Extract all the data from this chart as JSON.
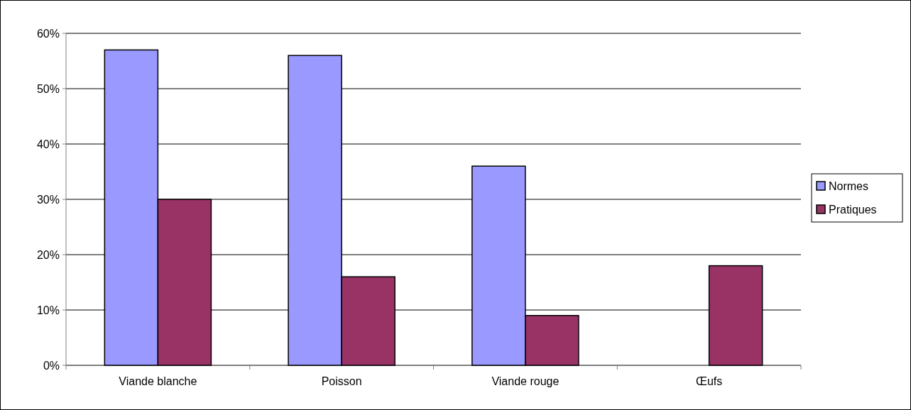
{
  "chart_data": {
    "type": "bar",
    "categories": [
      "Viande blanche",
      "Poisson",
      "Viande rouge",
      "Œufs"
    ],
    "series": [
      {
        "name": "Normes",
        "color": "#9999ff",
        "values": [
          57,
          56,
          36,
          null
        ]
      },
      {
        "name": "Pratiques",
        "color": "#993366",
        "values": [
          30,
          16,
          9,
          18
        ]
      }
    ],
    "ylim": [
      0,
      60
    ],
    "yticks": [
      {
        "value": 0,
        "label": "0%"
      },
      {
        "value": 10,
        "label": "10%"
      },
      {
        "value": 20,
        "label": "20%"
      },
      {
        "value": 30,
        "label": "30%"
      },
      {
        "value": 40,
        "label": "40%"
      },
      {
        "value": 50,
        "label": "50%"
      },
      {
        "value": 60,
        "label": "60%"
      }
    ],
    "grid": "y",
    "legend": "right"
  }
}
